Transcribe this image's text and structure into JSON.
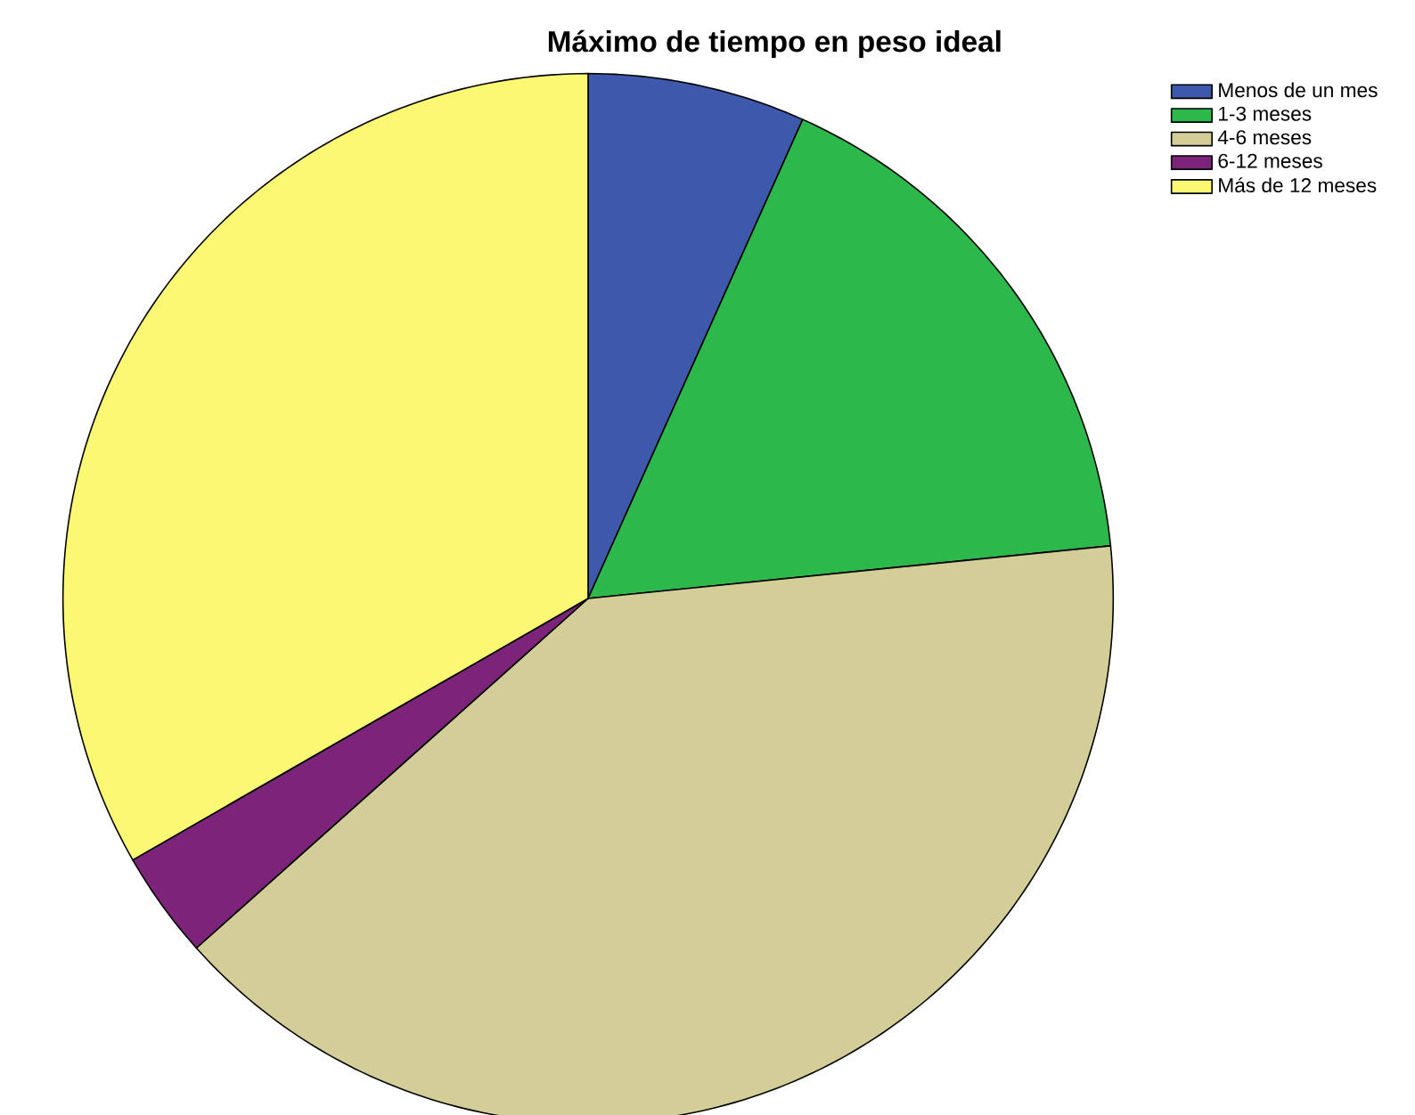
{
  "chart_data": {
    "type": "pie",
    "title": "Máximo de tiempo en peso ideal",
    "categories": [
      "Menos de un mes",
      "1-3 meses",
      "4-6 meses",
      "6-12 meses",
      "Más de 12 meses"
    ],
    "values": [
      6.7,
      16.7,
      40,
      3.3,
      33.3
    ],
    "colors": [
      "#3e58ac",
      "#2db84b",
      "#d3ce97",
      "#7b2479",
      "#fbf873"
    ],
    "legend": "top right"
  }
}
